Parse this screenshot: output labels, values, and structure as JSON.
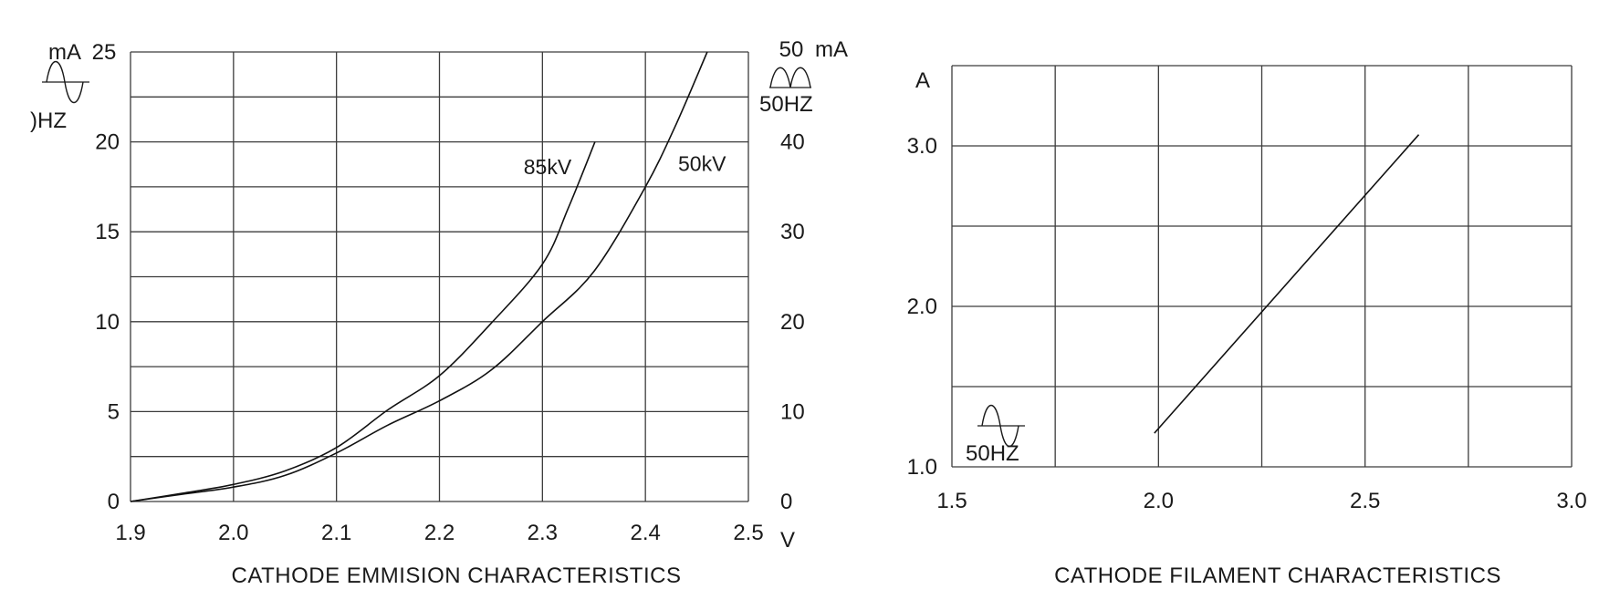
{
  "page": {
    "background": "#ffffff",
    "ink_color": "#1a1a1a",
    "grid_color": "#3c3c3c"
  },
  "chart_data": [
    {
      "id": "emission",
      "type": "line",
      "title": "CATHODE EMMISION CHARACTERISTICS",
      "grid": true,
      "legend_position": "on-curve",
      "x_axis": {
        "unit": "V",
        "min": 1.9,
        "max": 2.5,
        "grid_step": 0.1,
        "tick_values": [
          1.9,
          2.0,
          2.1,
          2.2,
          2.3,
          2.4,
          2.5
        ],
        "tick_labels": [
          "1.9",
          "2.0",
          "2.1",
          "2.2",
          "2.3",
          "2.4",
          "2.5"
        ]
      },
      "y_axis_left": {
        "unit": "mA",
        "min": 0,
        "max": 25,
        "grid_step": 2.5,
        "tick_values": [
          0,
          5,
          10,
          15,
          20
        ],
        "tick_labels": [
          "0",
          "5",
          "10",
          "15",
          "20"
        ],
        "top_label": "25",
        "freq_label": ")HZ",
        "icon": "sine-wave-icon"
      },
      "y_axis_right": {
        "unit": "mA",
        "min": 0,
        "max": 50,
        "tick_values": [
          0,
          10,
          20,
          30,
          40
        ],
        "tick_labels": [
          "0",
          "10",
          "20",
          "30",
          "40"
        ],
        "top_label": "50",
        "freq_label": "50HZ",
        "icon": "full-wave-rectified-icon"
      },
      "series": [
        {
          "name": "85kV",
          "label_at": [
            2.305,
            18.6
          ],
          "points": [
            [
              1.9,
              0
            ],
            [
              1.95,
              0.45
            ],
            [
              2.0,
              0.95
            ],
            [
              2.05,
              1.7
            ],
            [
              2.1,
              3.0
            ],
            [
              2.15,
              5.1
            ],
            [
              2.2,
              7.0
            ],
            [
              2.25,
              9.9
            ],
            [
              2.3,
              13.2
            ],
            [
              2.325,
              16.3
            ],
            [
              2.351,
              20.0
            ]
          ]
        },
        {
          "name": "50kV",
          "label_at": [
            2.455,
            18.8
          ],
          "points": [
            [
              1.9,
              0
            ],
            [
              1.95,
              0.4
            ],
            [
              2.0,
              0.8
            ],
            [
              2.05,
              1.45
            ],
            [
              2.1,
              2.7
            ],
            [
              2.15,
              4.25
            ],
            [
              2.2,
              5.6
            ],
            [
              2.25,
              7.3
            ],
            [
              2.3,
              10.0
            ],
            [
              2.35,
              12.8
            ],
            [
              2.4,
              17.5
            ],
            [
              2.43,
              21.0
            ],
            [
              2.46,
              25.0
            ]
          ]
        }
      ]
    },
    {
      "id": "filament",
      "type": "line",
      "title": "CATHODE FILAMENT CHARACTERISTICS",
      "grid": true,
      "x_axis": {
        "unit": "",
        "min": 1.5,
        "max": 3.0,
        "grid_step": 0.25,
        "tick_values": [
          1.5,
          2.0,
          2.5,
          3.0
        ],
        "tick_labels": [
          "1.5",
          "2.0",
          "2.5",
          "3.0"
        ]
      },
      "y_axis_left": {
        "unit": "A",
        "min": 1.0,
        "max": 3.5,
        "grid_step": 0.5,
        "tick_values": [
          1.0,
          2.0,
          3.0
        ],
        "tick_labels": [
          "1.0",
          "2.0",
          "3.0"
        ],
        "freq_label": "50HZ",
        "icon": "sine-wave-icon"
      },
      "series": [
        {
          "name": "",
          "label_at": null,
          "points": [
            [
              1.99,
              1.21
            ],
            [
              2.63,
              3.07
            ]
          ]
        }
      ]
    }
  ]
}
